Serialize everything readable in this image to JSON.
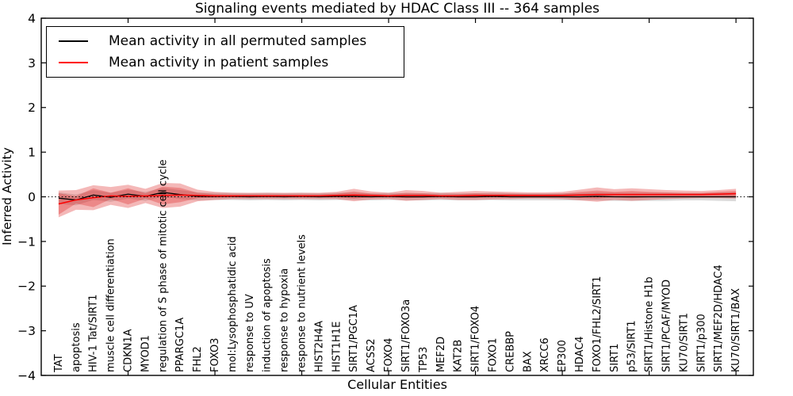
{
  "title": "Signaling events mediated by HDAC Class III -- 364 samples",
  "legend": {
    "items": [
      {
        "label": "Mean activity in all permuted samples",
        "color": "#000000"
      },
      {
        "label": "Mean activity in patient samples",
        "color": "#ff0000"
      }
    ]
  },
  "chart_data": {
    "type": "line",
    "title": "Signaling events mediated by HDAC Class III -- 364 samples",
    "xlabel": "Cellular Entities",
    "ylabel": "Inferred Activity",
    "ylim": [
      -4,
      4
    ],
    "yticks": [
      4,
      3,
      2,
      1,
      0,
      -1,
      -2,
      -3,
      -4
    ],
    "grid": false,
    "legend_position": "upper left",
    "zero_line": true,
    "categories": [
      "TAT",
      "apoptosis",
      "HIV-1 Tat/SIRT1",
      "muscle cell differentiation",
      "CDKN1A",
      "MYOD1",
      "regulation of S phase of mitotic cell cycle",
      "PPARGC1A",
      "FHL2",
      "FOXO3",
      "mol:Lysophosphatidic acid",
      "response to UV",
      "induction of apoptosis",
      "response to hypoxia",
      "response to nutrient levels",
      "HIST2H4A",
      "HIST1H1E",
      "SIRT1/PGC1A",
      "ACSS2",
      "FOXO4",
      "SIRT1/FOXO3a",
      "TP53",
      "MEF2D",
      "KAT2B",
      "SIRT1/FOXO4",
      "FOXO1",
      "CREBBP",
      "BAX",
      "XRCC6",
      "EP300",
      "HDAC4",
      "FOXO1/FHL2/SIRT1",
      "SIRT1",
      "p53/SIRT1",
      "SIRT1/Histone H1b",
      "SIRT1/PCAF/MYOD",
      "KU70/SIRT1",
      "SIRT1/p300",
      "SIRT1/MEF2D/HDAC4",
      "KU70/SIRT1/BAX"
    ],
    "series": [
      {
        "name": "Mean activity in all permuted samples",
        "color": "#000000",
        "band_color": "#000000",
        "band_opacity": 0.14,
        "values": [
          -0.03,
          -0.07,
          0.04,
          -0.01,
          0.06,
          0.01,
          0.1,
          0.05,
          0.01,
          0.01,
          0.01,
          0.0,
          0.01,
          0.0,
          0.01,
          0.0,
          0.01,
          0.01,
          0.0,
          0.01,
          0.0,
          0.0,
          0.01,
          0.0,
          0.0,
          0.01,
          0.0,
          0.0,
          0.0,
          0.0,
          0.0,
          0.01,
          0.0,
          0.0,
          0.0,
          0.0,
          0.0,
          0.0,
          0.0,
          0.0
        ],
        "std": [
          0.13,
          0.12,
          0.11,
          0.1,
          0.1,
          0.1,
          0.1,
          0.1,
          0.09,
          0.08,
          0.08,
          0.08,
          0.08,
          0.08,
          0.08,
          0.08,
          0.08,
          0.08,
          0.08,
          0.08,
          0.08,
          0.08,
          0.08,
          0.08,
          0.08,
          0.08,
          0.08,
          0.08,
          0.08,
          0.08,
          0.08,
          0.09,
          0.09,
          0.09,
          0.09,
          0.09,
          0.08,
          0.08,
          0.09,
          0.1
        ]
      },
      {
        "name": "Mean activity in patient samples",
        "color": "#ff0000",
        "band_color": "#dd2222",
        "band_opacity": 0.32,
        "values": [
          -0.16,
          -0.07,
          -0.02,
          0.02,
          0.01,
          0.02,
          0.03,
          0.04,
          0.03,
          0.02,
          0.02,
          0.02,
          0.02,
          0.02,
          0.02,
          0.02,
          0.03,
          0.04,
          0.03,
          0.02,
          0.03,
          0.03,
          0.02,
          0.02,
          0.03,
          0.03,
          0.03,
          0.03,
          0.03,
          0.03,
          0.04,
          0.05,
          0.05,
          0.05,
          0.05,
          0.05,
          0.05,
          0.05,
          0.06,
          0.07
        ],
        "std": [
          0.3,
          0.22,
          0.28,
          0.2,
          0.26,
          0.16,
          0.28,
          0.26,
          0.13,
          0.09,
          0.07,
          0.07,
          0.07,
          0.07,
          0.07,
          0.07,
          0.08,
          0.14,
          0.09,
          0.07,
          0.12,
          0.1,
          0.07,
          0.09,
          0.1,
          0.09,
          0.08,
          0.07,
          0.07,
          0.08,
          0.12,
          0.16,
          0.12,
          0.14,
          0.12,
          0.1,
          0.09,
          0.08,
          0.09,
          0.11
        ],
        "std_inner": [
          0.24,
          0.08,
          0.21,
          0.07,
          0.18,
          0.06,
          0.2,
          0.16,
          0.06,
          0.04,
          0.03,
          0.03,
          0.03,
          0.03,
          0.03,
          0.03,
          0.04,
          0.08,
          0.04,
          0.03,
          0.06,
          0.05,
          0.03,
          0.04,
          0.05,
          0.04,
          0.04,
          0.03,
          0.03,
          0.04,
          0.07,
          0.09,
          0.06,
          0.08,
          0.06,
          0.05,
          0.04,
          0.04,
          0.05,
          0.06
        ]
      }
    ]
  }
}
